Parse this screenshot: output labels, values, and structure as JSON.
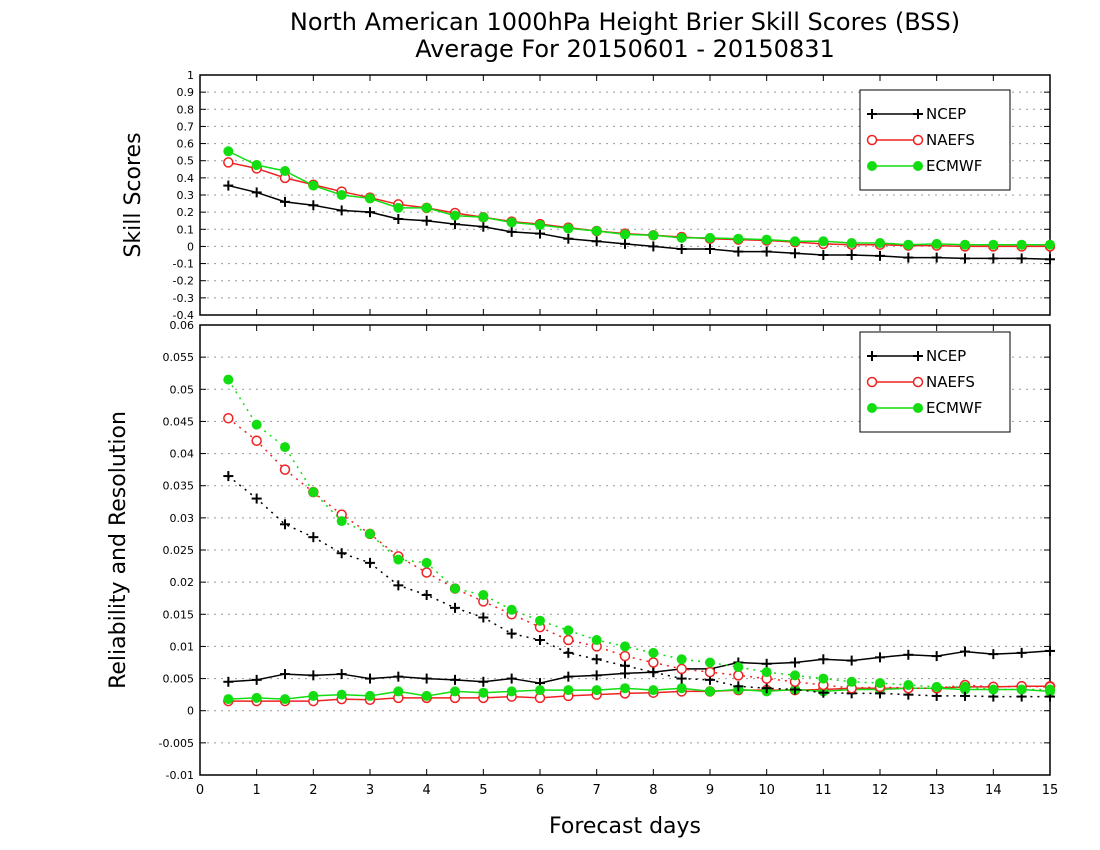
{
  "title_line1": "North American 1000hPa Height Brier Skill Scores (BSS)",
  "title_line2": "Average For 20150601 - 20150831",
  "xlabel": "Forecast days",
  "colors": {
    "NCEP": "#000000",
    "NAEFS": "#ee2222",
    "ECMWF": "#11dd11"
  },
  "chart_data": [
    {
      "type": "line",
      "ylabel": "Skill Scores",
      "ylim": [
        -0.4,
        1
      ],
      "xlim": [
        0,
        15
      ],
      "yticks": [
        "1",
        "0.9",
        "0.8",
        "0.7",
        "0.6",
        "0.5",
        "0.4",
        "0.3",
        "0.2",
        "0.1",
        "0",
        "-0.1",
        "-0.2",
        "-0.3",
        "-0.4"
      ],
      "xticks": [
        "0",
        "1",
        "2",
        "3",
        "4",
        "5",
        "6",
        "7",
        "8",
        "9",
        "10",
        "11",
        "12",
        "13",
        "14",
        "15"
      ],
      "grid": true,
      "legend": "top-right",
      "x": [
        0.5,
        1,
        1.5,
        2,
        2.5,
        3,
        3.5,
        4,
        4.5,
        5,
        5.5,
        6,
        6.5,
        7,
        7.5,
        8,
        8.5,
        9,
        9.5,
        10,
        10.5,
        11,
        11.5,
        12,
        12.5,
        13,
        13.5,
        14,
        14.5,
        15
      ],
      "series": [
        {
          "name": "NCEP",
          "values": [
            0.355,
            0.315,
            0.26,
            0.24,
            0.21,
            0.2,
            0.16,
            0.15,
            0.13,
            0.115,
            0.085,
            0.075,
            0.045,
            0.03,
            0.015,
            0.0,
            -0.015,
            -0.015,
            -0.03,
            -0.03,
            -0.04,
            -0.05,
            -0.05,
            -0.055,
            -0.065,
            -0.065,
            -0.07,
            -0.07,
            -0.07,
            -0.075
          ]
        },
        {
          "name": "NAEFS",
          "values": [
            0.49,
            0.455,
            0.4,
            0.36,
            0.32,
            0.285,
            0.245,
            0.225,
            0.195,
            0.17,
            0.145,
            0.13,
            0.11,
            0.09,
            0.075,
            0.065,
            0.055,
            0.045,
            0.04,
            0.035,
            0.025,
            0.015,
            0.01,
            0.01,
            0.005,
            0.005,
            0.0,
            0.0,
            0.0,
            0.0
          ]
        },
        {
          "name": "ECMWF",
          "values": [
            0.555,
            0.475,
            0.44,
            0.355,
            0.3,
            0.28,
            0.225,
            0.225,
            0.18,
            0.17,
            0.14,
            0.125,
            0.105,
            0.09,
            0.07,
            0.065,
            0.05,
            0.05,
            0.045,
            0.04,
            0.03,
            0.03,
            0.02,
            0.02,
            0.01,
            0.015,
            0.01,
            0.01,
            0.01,
            0.01
          ]
        }
      ]
    },
    {
      "type": "line",
      "ylabel": "Reliability and Resolution",
      "ylim": [
        -0.01,
        0.06
      ],
      "xlim": [
        0,
        15
      ],
      "yticks": [
        "0.06",
        "0.055",
        "0.05",
        "0.045",
        "0.04",
        "0.035",
        "0.03",
        "0.025",
        "0.02",
        "0.015",
        "0.01",
        "0.005",
        "0",
        "-0.005",
        "-0.01"
      ],
      "xticks": [
        "0",
        "1",
        "2",
        "3",
        "4",
        "5",
        "6",
        "7",
        "8",
        "9",
        "10",
        "11",
        "12",
        "13",
        "14",
        "15"
      ],
      "grid": true,
      "legend": "top-right",
      "x": [
        0.5,
        1,
        1.5,
        2,
        2.5,
        3,
        3.5,
        4,
        4.5,
        5,
        5.5,
        6,
        6.5,
        7,
        7.5,
        8,
        8.5,
        9,
        9.5,
        10,
        10.5,
        11,
        11.5,
        12,
        12.5,
        13,
        13.5,
        14,
        14.5,
        15
      ],
      "series": [
        {
          "name": "NCEP",
          "line": "solid",
          "values": [
            0.0045,
            0.0048,
            0.0057,
            0.0055,
            0.0057,
            0.005,
            0.0053,
            0.005,
            0.0048,
            0.0045,
            0.005,
            0.0043,
            0.0053,
            0.0055,
            0.0058,
            0.006,
            0.0065,
            0.0065,
            0.0075,
            0.0073,
            0.0075,
            0.008,
            0.0078,
            0.0083,
            0.0087,
            0.0085,
            0.0092,
            0.0088,
            0.009,
            0.0093
          ]
        },
        {
          "name": "NAEFS",
          "line": "solid",
          "values": [
            0.0015,
            0.0015,
            0.0015,
            0.0015,
            0.0018,
            0.0017,
            0.002,
            0.002,
            0.002,
            0.002,
            0.0022,
            0.002,
            0.0023,
            0.0025,
            0.0027,
            0.0028,
            0.003,
            0.003,
            0.0032,
            0.0032,
            0.0032,
            0.0033,
            0.0035,
            0.0035,
            0.0035,
            0.0035,
            0.0037,
            0.0037,
            0.0038,
            0.0038
          ]
        },
        {
          "name": "ECMWF",
          "line": "solid",
          "values": [
            0.0018,
            0.002,
            0.0018,
            0.0023,
            0.0025,
            0.0023,
            0.003,
            0.0023,
            0.003,
            0.0028,
            0.003,
            0.0032,
            0.0032,
            0.0032,
            0.0035,
            0.0032,
            0.0035,
            0.003,
            0.0033,
            0.003,
            0.0033,
            0.003,
            0.0033,
            0.0033,
            0.0035,
            0.0035,
            0.0033,
            0.0033,
            0.0033,
            0.003
          ]
        },
        {
          "name": "NCEP",
          "line": "dotted",
          "values": [
            0.0365,
            0.033,
            0.029,
            0.027,
            0.0245,
            0.023,
            0.0195,
            0.018,
            0.016,
            0.0145,
            0.012,
            0.011,
            0.009,
            0.008,
            0.007,
            0.006,
            0.005,
            0.0048,
            0.0038,
            0.0035,
            0.0033,
            0.0028,
            0.0027,
            0.0027,
            0.0025,
            0.0023,
            0.0023,
            0.0022,
            0.0022,
            0.0022
          ]
        },
        {
          "name": "NAEFS",
          "line": "dotted",
          "values": [
            0.0455,
            0.042,
            0.0375,
            0.034,
            0.0305,
            0.0275,
            0.024,
            0.0215,
            0.019,
            0.017,
            0.015,
            0.013,
            0.011,
            0.01,
            0.0085,
            0.0075,
            0.0065,
            0.006,
            0.0055,
            0.005,
            0.0045,
            0.004,
            0.0035,
            0.0037,
            0.0035,
            0.0035,
            0.004,
            0.0037,
            0.0038,
            0.0037
          ]
        },
        {
          "name": "ECMWF",
          "line": "dotted",
          "values": [
            0.0515,
            0.0445,
            0.041,
            0.034,
            0.0295,
            0.0275,
            0.0235,
            0.023,
            0.019,
            0.018,
            0.0157,
            0.014,
            0.0125,
            0.011,
            0.01,
            0.009,
            0.008,
            0.0075,
            0.0068,
            0.006,
            0.0055,
            0.005,
            0.0045,
            0.0043,
            0.004,
            0.0037,
            0.0037,
            0.0033,
            0.0033,
            0.0033
          ]
        }
      ]
    }
  ]
}
